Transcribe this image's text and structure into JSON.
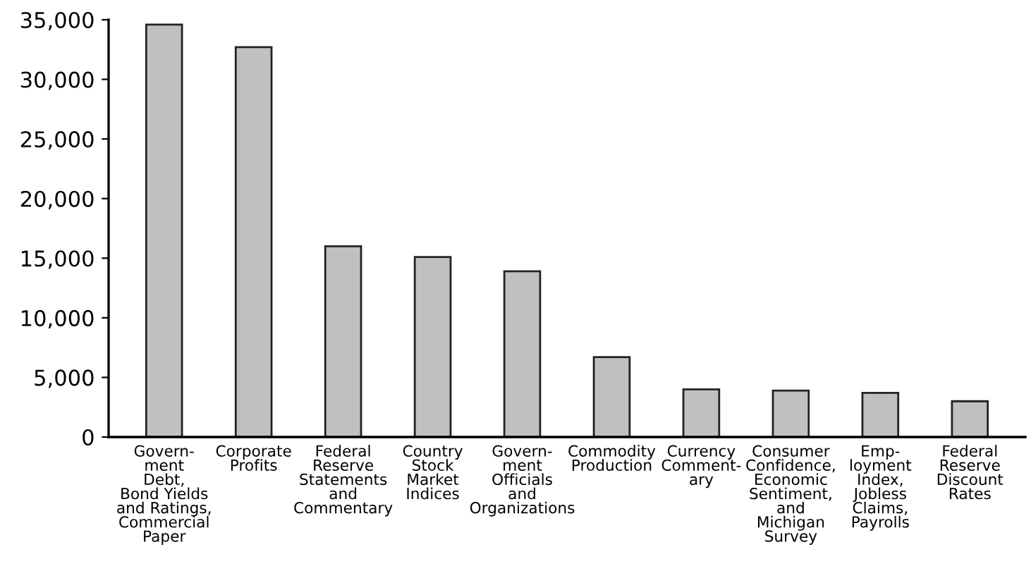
{
  "chart_data": {
    "type": "bar",
    "categories": [
      "Govern-\nment\nDebt,\nBond Yields\nand Ratings,\nCommercial\nPaper",
      "Corporate\nProfits",
      "Federal\nReserve\nStatements\nand\nCommentary",
      "Country\nStock\nMarket\nIndices",
      "Govern-\nment\nOfficials\nand\nOrganizations",
      "Commodity\nProduction",
      "Currency\nComment-\nary",
      "Consumer\nConfidence,\nEconomic\nSentiment,\nand\nMichigan\nSurvey",
      "Emp-\nloyment\nIndex,\nJobless\nClaims,\nPayrolls",
      "Federal\nReserve\nDiscount\nRates"
    ],
    "values": [
      34600,
      32700,
      16000,
      15100,
      13900,
      6700,
      4000,
      3900,
      3700,
      3000
    ],
    "color": "#c0c0c0",
    "ylim": [
      0,
      35000
    ],
    "yticks": [
      {
        "value": 0,
        "label": "0"
      },
      {
        "value": 5000,
        "label": "5,000"
      },
      {
        "value": 10000,
        "label": "10,000"
      },
      {
        "value": 15000,
        "label": "15,000"
      },
      {
        "value": 20000,
        "label": "20,000"
      },
      {
        "value": 25000,
        "label": "25,000"
      },
      {
        "value": 30000,
        "label": "30,000"
      },
      {
        "value": 35000,
        "label": "35,000"
      }
    ],
    "grid": false
  }
}
